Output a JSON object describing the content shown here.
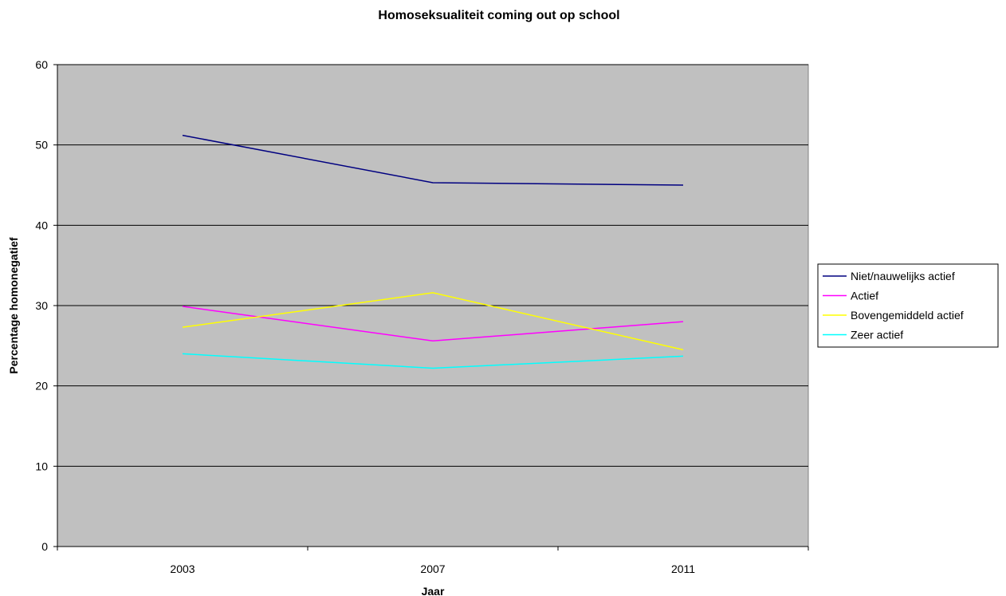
{
  "chart_data": {
    "type": "line",
    "title": "Homoseksualiteit coming out op school",
    "xlabel": "Jaar",
    "ylabel": "Percentage homonegatief",
    "categories": [
      "2003",
      "2007",
      "2011"
    ],
    "ylim": [
      0,
      60
    ],
    "yticks": [
      0,
      10,
      20,
      30,
      40,
      50,
      60
    ],
    "grid": true,
    "legend_position": "right",
    "plot_background": "#c0c0c0",
    "series": [
      {
        "name": "Niet/nauwelijks actief",
        "color": "#000080",
        "values": [
          51.2,
          45.3,
          45.0
        ]
      },
      {
        "name": "Actief",
        "color": "#ff00ff",
        "values": [
          29.9,
          25.6,
          28.0
        ]
      },
      {
        "name": "Bovengemiddeld actief",
        "color": "#ffff00",
        "values": [
          27.3,
          31.6,
          24.5
        ]
      },
      {
        "name": "Zeer actief",
        "color": "#00ffff",
        "values": [
          24.0,
          22.2,
          23.7
        ]
      }
    ]
  }
}
